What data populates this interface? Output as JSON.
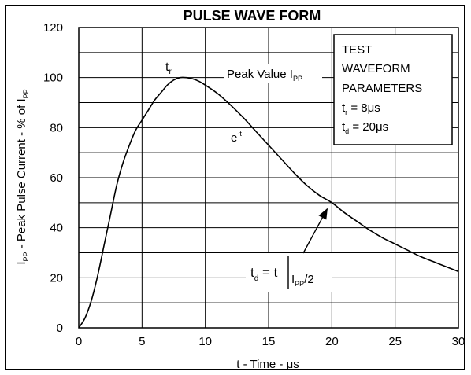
{
  "chart_data": {
    "type": "line",
    "title": "PULSE WAVE FORM",
    "xlabel": "t - Time - μs",
    "ylabel": {
      "main": "I",
      "sub": "PP",
      "rest": " - Peak Pulse Current - % of I",
      "sub2": "PP"
    },
    "xlim": [
      0,
      30
    ],
    "ylim": [
      0,
      120
    ],
    "x_ticks": [
      "0",
      "5",
      "10",
      "15",
      "20",
      "25",
      "30"
    ],
    "y_ticks": [
      "0",
      "20",
      "40",
      "60",
      "80",
      "100",
      "120"
    ],
    "grid": true,
    "series": [
      {
        "x": [
          0,
          0.5,
          1,
          1.5,
          2,
          2.5,
          3,
          3.5,
          4,
          4.5,
          5,
          5.5,
          6,
          6.5,
          7,
          7.5,
          8,
          8.5,
          9,
          9.5,
          10,
          11,
          12,
          13,
          14,
          15,
          16,
          17,
          18,
          19,
          20,
          21,
          22,
          23,
          24,
          25,
          26,
          27,
          28,
          29,
          30
        ],
        "values": [
          0,
          4,
          11,
          21,
          33,
          45,
          57,
          66,
          73,
          79,
          83,
          87,
          91,
          94,
          97,
          99,
          100,
          100,
          99.5,
          98.5,
          97,
          93.5,
          89,
          84,
          78.5,
          73,
          67.5,
          62,
          57,
          53,
          50,
          46,
          42.5,
          39,
          36,
          33.5,
          31,
          28.5,
          26.5,
          24.5,
          22.5
        ]
      }
    ],
    "annotations": {
      "tr": {
        "main": "t",
        "sub": "r"
      },
      "peak": {
        "main": "Peak Value I",
        "sub": "PP"
      },
      "exp": {
        "main": "e",
        "sup": "-t"
      },
      "td": {
        "lhs_main": "t",
        "lhs_sub": "d",
        "eq": " = t",
        "rhs_main": "I",
        "rhs_sub": "PP",
        "rhs_rest": "/2"
      }
    },
    "legend_box": {
      "lines": [
        "TEST",
        "WAVEFORM",
        "PARAMETERS"
      ],
      "params": [
        {
          "main": "t",
          "sub": "r",
          "rest": " = 8μs"
        },
        {
          "main": "t",
          "sub": "d",
          "rest": " = 20μs"
        }
      ]
    }
  }
}
